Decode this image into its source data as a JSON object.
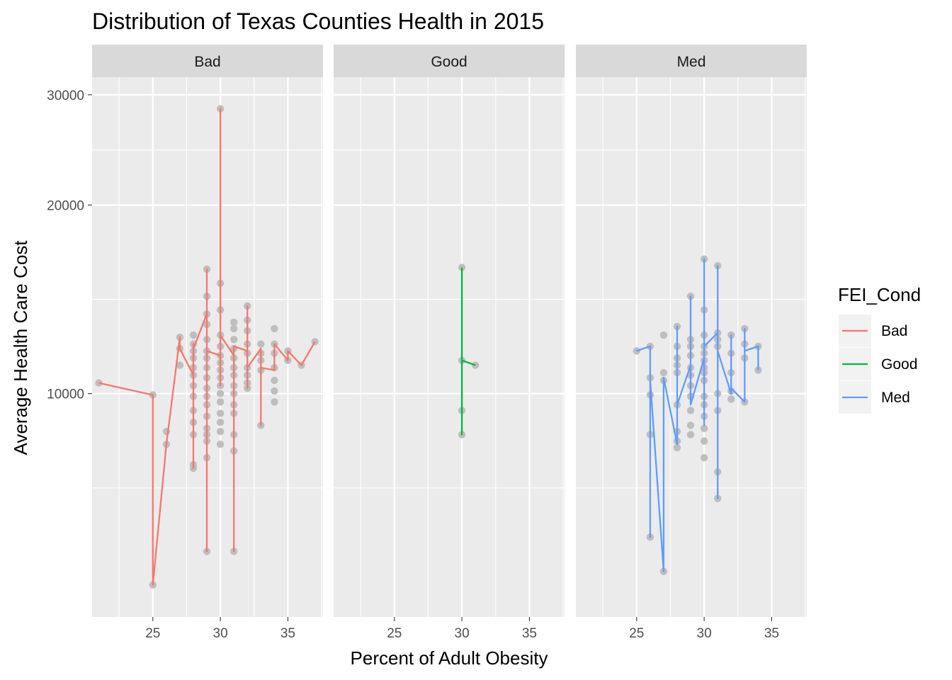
{
  "chart_data": {
    "type": "scatter",
    "title": "Distribution of Texas Counties Health in 2015",
    "xlabel": "Percent of Adult Obesity",
    "ylabel": "Average Health Care Cost",
    "y_scale": "log",
    "xlim": [
      20.5,
      37.6
    ],
    "ylim": [
      4400,
      32000
    ],
    "x_ticks": [
      25,
      30,
      35
    ],
    "y_ticks": [
      10000,
      20000,
      30000
    ],
    "grid": true,
    "point_color": "#bebebe",
    "legend": {
      "title": "FEI_Cond",
      "position": "right",
      "entries": [
        {
          "label": "Bad",
          "color": "#F8766D"
        },
        {
          "label": "Good",
          "color": "#00BA38"
        },
        {
          "label": "Med",
          "color": "#619CFF"
        }
      ]
    },
    "panels": [
      {
        "name": "Bad",
        "color": "#F8766D",
        "points": [
          [
            21,
            10400
          ],
          [
            25,
            9950
          ],
          [
            25,
            4950
          ],
          [
            26,
            8700
          ],
          [
            26,
            8300
          ],
          [
            27,
            12300
          ],
          [
            27,
            11800
          ],
          [
            27,
            11100
          ],
          [
            28,
            12400
          ],
          [
            28,
            12000
          ],
          [
            28,
            11700
          ],
          [
            28,
            11400
          ],
          [
            28,
            11000
          ],
          [
            28,
            10700
          ],
          [
            28,
            10300
          ],
          [
            28,
            9900
          ],
          [
            28,
            9400
          ],
          [
            28,
            9000
          ],
          [
            28,
            8600
          ],
          [
            28,
            7700
          ],
          [
            28,
            7600
          ],
          [
            29,
            15800
          ],
          [
            29,
            14300
          ],
          [
            29,
            13400
          ],
          [
            29,
            12900
          ],
          [
            29,
            12200
          ],
          [
            29,
            11700
          ],
          [
            29,
            11400
          ],
          [
            29,
            11000
          ],
          [
            29,
            10600
          ],
          [
            29,
            10200
          ],
          [
            29,
            9900
          ],
          [
            29,
            9600
          ],
          [
            29,
            9200
          ],
          [
            29,
            8800
          ],
          [
            29,
            8600
          ],
          [
            29,
            8400
          ],
          [
            29,
            7900
          ],
          [
            29,
            5600
          ],
          [
            30,
            28500
          ],
          [
            30,
            15000
          ],
          [
            30,
            13600
          ],
          [
            30,
            12400
          ],
          [
            30,
            11900
          ],
          [
            30,
            11500
          ],
          [
            30,
            11200
          ],
          [
            30,
            10900
          ],
          [
            30,
            10600
          ],
          [
            30,
            10300
          ],
          [
            30,
            10000
          ],
          [
            30,
            9700
          ],
          [
            30,
            9300
          ],
          [
            30,
            9000
          ],
          [
            30,
            8700
          ],
          [
            30,
            8300
          ],
          [
            31,
            13000
          ],
          [
            31,
            12700
          ],
          [
            31,
            12200
          ],
          [
            31,
            11800
          ],
          [
            31,
            11400
          ],
          [
            31,
            11000
          ],
          [
            31,
            10700
          ],
          [
            31,
            10300
          ],
          [
            31,
            10000
          ],
          [
            31,
            9600
          ],
          [
            31,
            9300
          ],
          [
            31,
            8600
          ],
          [
            31,
            8100
          ],
          [
            31,
            5600
          ],
          [
            32,
            13800
          ],
          [
            32,
            13100
          ],
          [
            32,
            12600
          ],
          [
            32,
            12000
          ],
          [
            32,
            11600
          ],
          [
            32,
            11000
          ],
          [
            32,
            10700
          ],
          [
            32,
            10400
          ],
          [
            32,
            10200
          ],
          [
            33,
            12000
          ],
          [
            33,
            11600
          ],
          [
            33,
            11300
          ],
          [
            33,
            10900
          ],
          [
            33,
            8900
          ],
          [
            34,
            12700
          ],
          [
            34,
            12000
          ],
          [
            34,
            11600
          ],
          [
            34,
            11000
          ],
          [
            34,
            10500
          ],
          [
            34,
            10100
          ],
          [
            34,
            9700
          ],
          [
            35,
            11700
          ],
          [
            35,
            11300
          ],
          [
            36,
            11100
          ],
          [
            37,
            12100
          ]
        ],
        "line": [
          [
            21,
            10400
          ],
          [
            25,
            9950
          ],
          [
            25,
            4950
          ],
          [
            26,
            8300
          ],
          [
            27,
            12300
          ],
          [
            27,
            11800
          ],
          [
            28,
            10700
          ],
          [
            28,
            12000
          ],
          [
            28,
            7600
          ],
          [
            28,
            11800
          ],
          [
            29,
            13400
          ],
          [
            29,
            15800
          ],
          [
            29,
            5600
          ],
          [
            29,
            11700
          ],
          [
            30,
            11500
          ],
          [
            30,
            28500
          ],
          [
            30,
            10300
          ],
          [
            30,
            12400
          ],
          [
            31,
            11500
          ],
          [
            31,
            5600
          ],
          [
            31,
            11900
          ],
          [
            32,
            11700
          ],
          [
            32,
            13800
          ],
          [
            32,
            10200
          ],
          [
            32,
            11000
          ],
          [
            33,
            11800
          ],
          [
            33,
            8900
          ],
          [
            33,
            11000
          ],
          [
            34,
            10900
          ],
          [
            34,
            12000
          ],
          [
            35,
            11300
          ],
          [
            35,
            11700
          ],
          [
            36,
            11100
          ],
          [
            37,
            12100
          ]
        ]
      },
      {
        "name": "Good",
        "color": "#00BA38",
        "points": [
          [
            30,
            15900
          ],
          [
            30,
            11300
          ],
          [
            30,
            9400
          ],
          [
            30,
            8600
          ],
          [
            31,
            11100
          ]
        ],
        "line": [
          [
            30,
            15900
          ],
          [
            30,
            8600
          ],
          [
            30,
            11300
          ],
          [
            31,
            11100
          ]
        ]
      },
      {
        "name": "Med",
        "color": "#619CFF",
        "points": [
          [
            25,
            11700
          ],
          [
            26,
            11900
          ],
          [
            26,
            10600
          ],
          [
            26,
            9950
          ],
          [
            26,
            8600
          ],
          [
            26,
            5900
          ],
          [
            27,
            12400
          ],
          [
            27,
            10800
          ],
          [
            27,
            10500
          ],
          [
            27,
            5200
          ],
          [
            28,
            12800
          ],
          [
            28,
            11900
          ],
          [
            28,
            11400
          ],
          [
            28,
            11100
          ],
          [
            28,
            10800
          ],
          [
            28,
            9600
          ],
          [
            28,
            8700
          ],
          [
            28,
            8400
          ],
          [
            28,
            8200
          ],
          [
            29,
            14300
          ],
          [
            29,
            12200
          ],
          [
            29,
            11900
          ],
          [
            29,
            11500
          ],
          [
            29,
            11000
          ],
          [
            29,
            10700
          ],
          [
            29,
            10300
          ],
          [
            29,
            9900
          ],
          [
            29,
            9400
          ],
          [
            29,
            8900
          ],
          [
            29,
            8600
          ],
          [
            30,
            16400
          ],
          [
            30,
            13600
          ],
          [
            30,
            12400
          ],
          [
            30,
            11900
          ],
          [
            30,
            11600
          ],
          [
            30,
            11300
          ],
          [
            30,
            11000
          ],
          [
            30,
            10800
          ],
          [
            30,
            10500
          ],
          [
            30,
            9900
          ],
          [
            30,
            9600
          ],
          [
            30,
            9200
          ],
          [
            30,
            8800
          ],
          [
            30,
            8400
          ],
          [
            30,
            7900
          ],
          [
            31,
            16000
          ],
          [
            31,
            12500
          ],
          [
            31,
            12200
          ],
          [
            31,
            11900
          ],
          [
            31,
            10000
          ],
          [
            31,
            9400
          ],
          [
            31,
            7500
          ],
          [
            31,
            6800
          ],
          [
            32,
            12400
          ],
          [
            32,
            11600
          ],
          [
            32,
            10800
          ],
          [
            32,
            10100
          ],
          [
            32,
            9800
          ],
          [
            33,
            12700
          ],
          [
            33,
            12000
          ],
          [
            33,
            11400
          ],
          [
            33,
            9700
          ],
          [
            34,
            11900
          ],
          [
            34,
            10900
          ]
        ],
        "line": [
          [
            25,
            11700
          ],
          [
            26,
            11900
          ],
          [
            26,
            5900
          ],
          [
            26,
            10500
          ],
          [
            27,
            5200
          ],
          [
            27,
            10600
          ],
          [
            28,
            8300
          ],
          [
            28,
            12800
          ],
          [
            28,
            9600
          ],
          [
            29,
            11100
          ],
          [
            29,
            14300
          ],
          [
            29,
            9600
          ],
          [
            30,
            11400
          ],
          [
            30,
            16400
          ],
          [
            30,
            8900
          ],
          [
            30,
            11900
          ],
          [
            31,
            12500
          ],
          [
            31,
            16000
          ],
          [
            31,
            6800
          ],
          [
            31,
            11700
          ],
          [
            32,
            10000
          ],
          [
            32,
            12400
          ],
          [
            32,
            10200
          ],
          [
            33,
            9700
          ],
          [
            33,
            12700
          ],
          [
            33,
            11700
          ],
          [
            34,
            11900
          ],
          [
            34,
            10900
          ]
        ]
      }
    ]
  }
}
